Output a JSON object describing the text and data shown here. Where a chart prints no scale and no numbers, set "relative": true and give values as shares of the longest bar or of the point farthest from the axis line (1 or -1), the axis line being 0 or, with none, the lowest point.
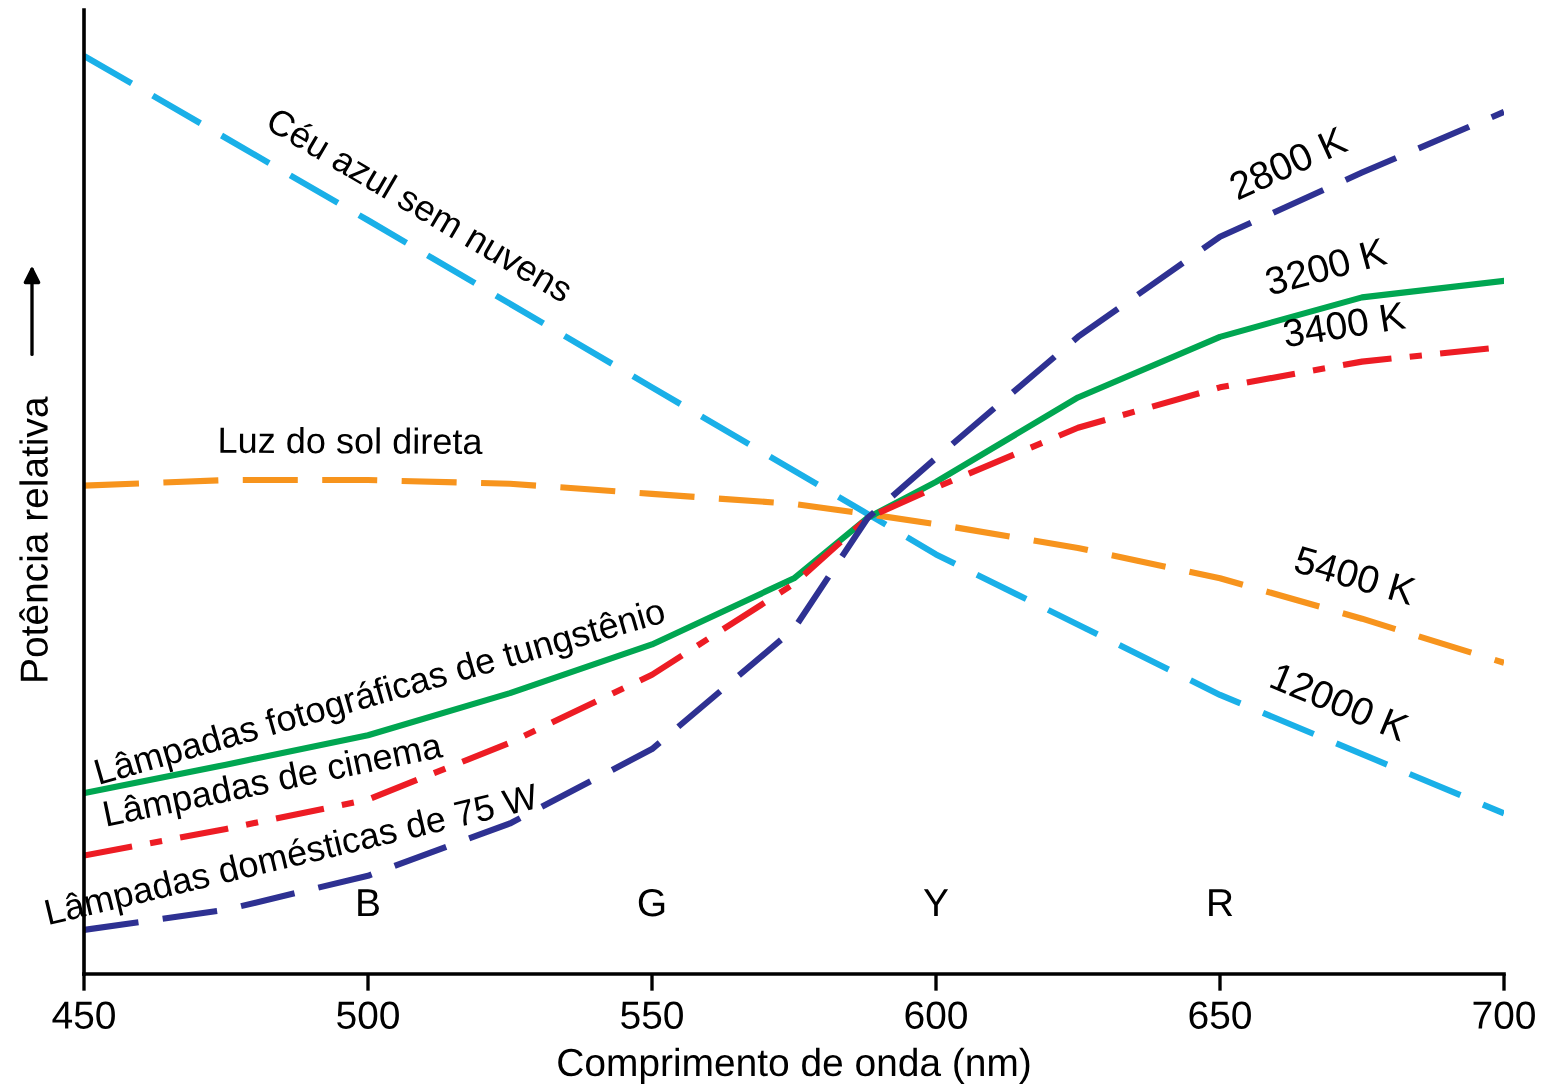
{
  "chart_data": {
    "type": "line",
    "relative": true,
    "xlabel": "Comprimento de onda (nm)",
    "ylabel": "Potência relativa",
    "xlim": [
      450,
      700
    ],
    "xticks": [
      450,
      500,
      550,
      600,
      650,
      700
    ],
    "grid": false,
    "tick_labels": "x",
    "series": [
      {
        "color": "#1ab0e8",
        "line_style": "dashed",
        "x": [
          450,
          500,
          550,
          588,
          600,
          650,
          700
        ],
        "values": [
          1.0,
          0.821,
          0.639,
          0.501,
          0.457,
          0.304,
          0.175
        ]
      },
      {
        "color": "#f7941d",
        "line_style": "dashed",
        "x": [
          450,
          475,
          500,
          525,
          550,
          575,
          588,
          600,
          625,
          650,
          675,
          700
        ],
        "values": [
          0.532,
          0.538,
          0.538,
          0.534,
          0.523,
          0.512,
          0.501,
          0.49,
          0.464,
          0.431,
          0.387,
          0.339
        ]
      },
      {
        "color": "#00a651",
        "line_style": "solid",
        "x": [
          450,
          475,
          500,
          525,
          550,
          575,
          588,
          600,
          625,
          650,
          675,
          700
        ],
        "values": [
          0.197,
          0.228,
          0.26,
          0.306,
          0.359,
          0.431,
          0.497,
          0.536,
          0.628,
          0.694,
          0.737,
          0.755
        ]
      },
      {
        "color": "#ed1c24",
        "line_style": "dashdot",
        "x": [
          450,
          475,
          500,
          525,
          550,
          575,
          588,
          600,
          625,
          650,
          675,
          700
        ],
        "values": [
          0.129,
          0.158,
          0.19,
          0.252,
          0.326,
          0.425,
          0.497,
          0.53,
          0.595,
          0.639,
          0.667,
          0.683
        ]
      },
      {
        "color": "#2e3192",
        "line_style": "dashed",
        "x": [
          450,
          475,
          500,
          525,
          550,
          575,
          588,
          600,
          625,
          650,
          675,
          700
        ],
        "values": [
          0.048,
          0.07,
          0.107,
          0.164,
          0.245,
          0.376,
          0.497,
          0.562,
          0.694,
          0.803,
          0.873,
          0.939
        ]
      }
    ],
    "annotations": [
      {
        "text": "Céu azul sem nuvens",
        "x": 505.6,
        "y": 0.801
      },
      {
        "text": "Luz do sol direta",
        "x": 496.8,
        "y": 0.538
      },
      {
        "text": "Lâmpadas fotográficas de tungstênio",
        "x": 503.9,
        "y": 0.267
      },
      {
        "text": "Lâmpadas de cinema",
        "x": 484.5,
        "y": 0.17
      },
      {
        "text": "Lâmpadas domésticas de 75 W",
        "x": 488,
        "y": 0.089
      },
      {
        "text": "2800 K",
        "x": 664.8,
        "y": 0.844
      },
      {
        "text": "3200 K",
        "x": 670.4,
        "y": 0.729
      },
      {
        "text": "3400 K",
        "x": 672.9,
        "y": 0.665
      },
      {
        "text": "5400 K",
        "x": 671.8,
        "y": 0.393
      },
      {
        "text": "12000 K",
        "x": 668.3,
        "y": 0.257
      },
      "B",
      "G",
      "Y",
      "R"
    ]
  }
}
